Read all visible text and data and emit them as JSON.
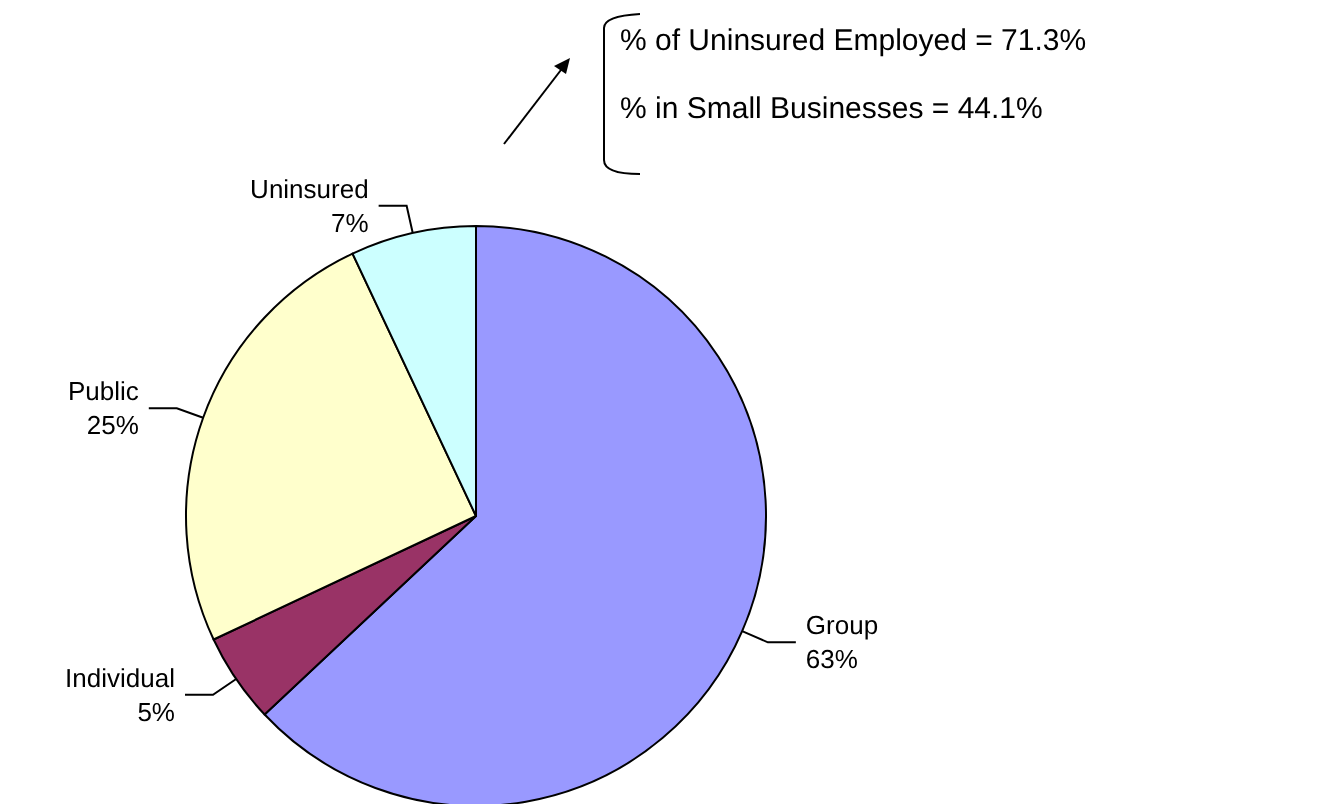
{
  "chart_data": {
    "type": "pie",
    "categories": [
      "Group",
      "Individual",
      "Public",
      "Uninsured"
    ],
    "values": [
      63,
      5,
      25,
      7
    ],
    "value_labels": [
      "63%",
      "5%",
      "25%",
      "7%"
    ],
    "colors": [
      "#9999ff",
      "#993366",
      "#ffffcc",
      "#ccffff"
    ],
    "legend": false,
    "annotations": [
      "% of Uninsured Employed = 71.3%",
      "% in Small Businesses = 44.1%"
    ]
  }
}
